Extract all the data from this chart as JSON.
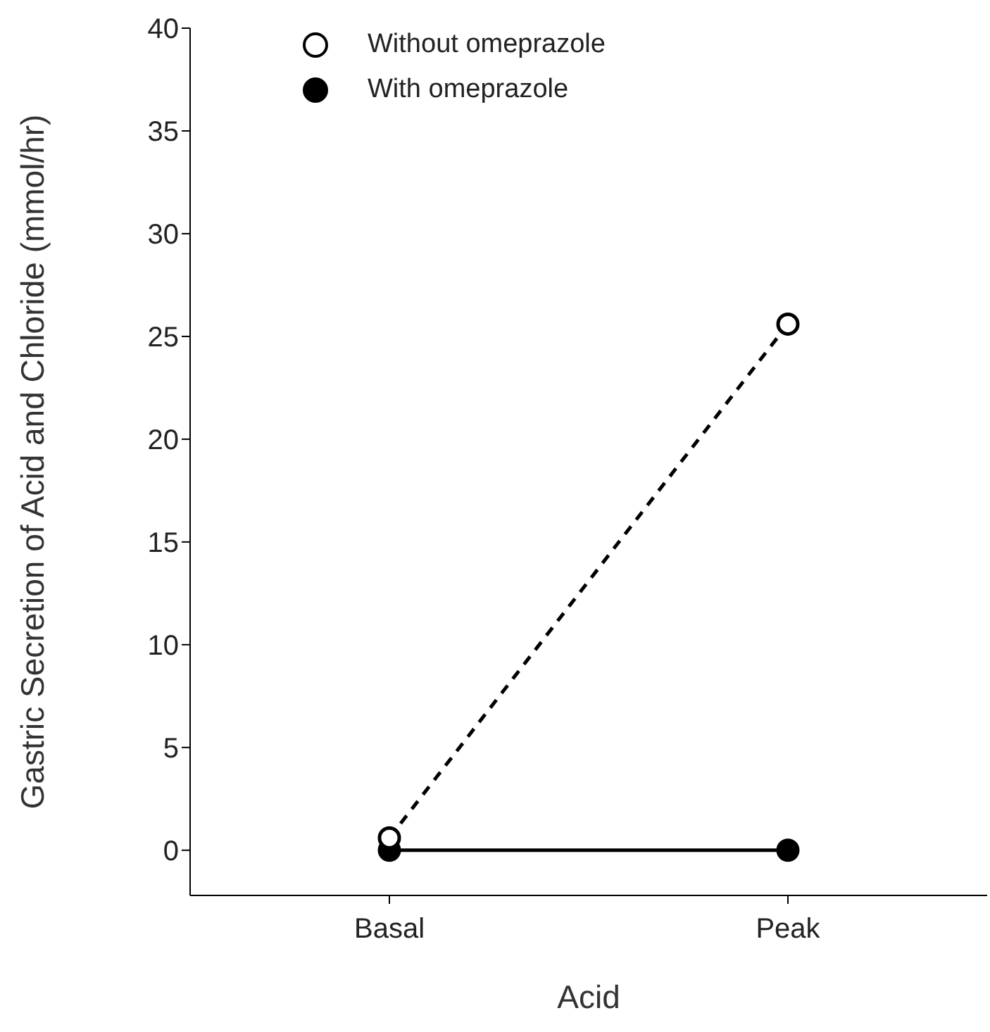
{
  "chart_data": {
    "type": "line",
    "xlabel": "Acid",
    "ylabel": "Gastric Secretion of Acid and Chloride (mmol/hr)",
    "categories": [
      "Basal",
      "Peak"
    ],
    "series": [
      {
        "name": "Without omeprazole",
        "color": "#000000",
        "values": [
          0.6,
          25.6
        ],
        "line_style": "dashed",
        "marker": "circle"
      },
      {
        "name": "With omeprazole",
        "color": "#000000",
        "values": [
          0,
          0
        ],
        "line_style": "solid",
        "marker": "circle"
      }
    ],
    "ylim": [
      -2.2,
      40
    ],
    "yticks": [
      0,
      5,
      10,
      15,
      20,
      25,
      30,
      35,
      40
    ],
    "legend": "top left",
    "grid": false
  }
}
